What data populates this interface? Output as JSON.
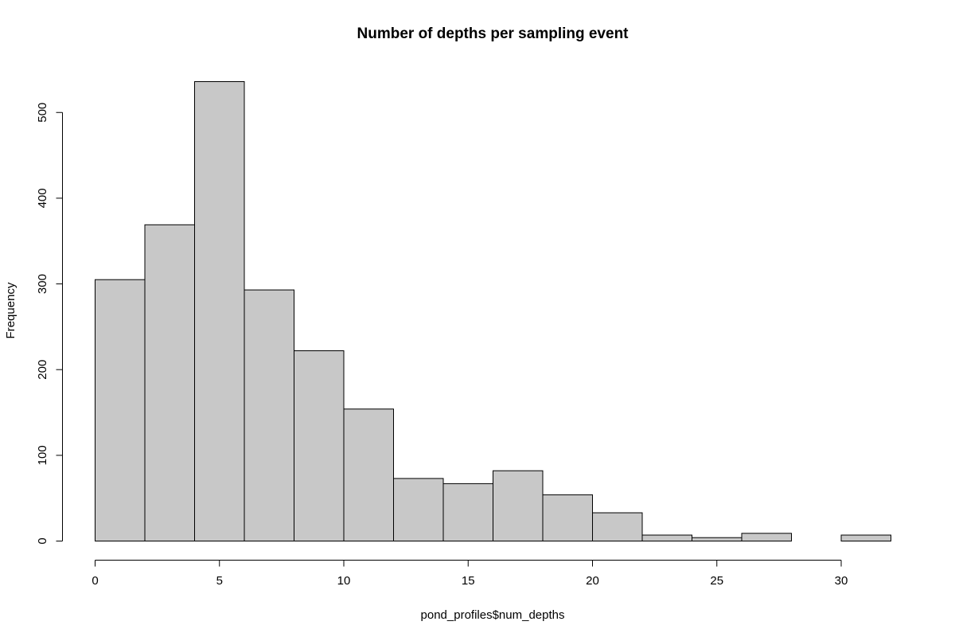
{
  "chart_data": {
    "type": "bar",
    "subtype": "histogram",
    "title": "Number of depths per sampling event",
    "xlabel": "pond_profiles$num_depths",
    "ylabel": "Frequency",
    "bin_edges": [
      0,
      2,
      4,
      6,
      8,
      10,
      12,
      14,
      16,
      18,
      20,
      22,
      24,
      26,
      28,
      30,
      32
    ],
    "values": [
      305,
      369,
      536,
      293,
      222,
      154,
      73,
      67,
      82,
      54,
      33,
      7,
      4,
      9,
      0,
      7
    ],
    "xlim": [
      0,
      32
    ],
    "ylim": [
      0,
      536
    ],
    "x_ticks": [
      0,
      5,
      10,
      15,
      20,
      25,
      30
    ],
    "y_ticks": [
      0,
      100,
      200,
      300,
      400,
      500
    ],
    "grid": false,
    "legend": "none",
    "colors": {
      "bar_fill": "#c8c8c8",
      "bar_stroke": "#000000"
    }
  }
}
